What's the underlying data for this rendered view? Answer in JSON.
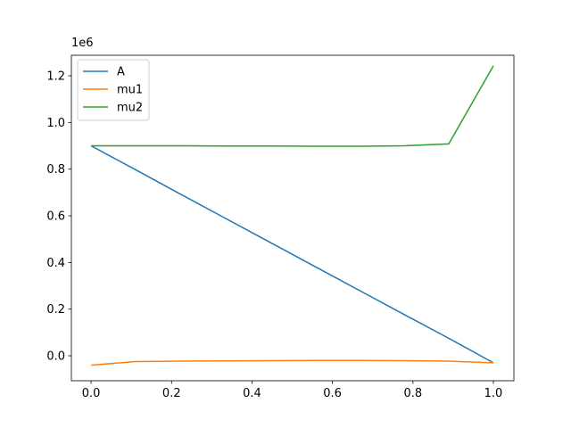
{
  "chart_data": {
    "type": "line",
    "y_offset_label": "1e6",
    "x": [
      0,
      0.111,
      0.222,
      0.333,
      0.444,
      0.556,
      0.667,
      0.778,
      0.889,
      1
    ],
    "series": [
      {
        "name": "A",
        "color": "#1f77b4",
        "values": [
          0.9,
          0.797,
          0.693,
          0.59,
          0.487,
          0.383,
          0.28,
          0.177,
          0.075,
          -0.03
        ]
      },
      {
        "name": "mu1",
        "color": "#ff7f0e",
        "values": [
          -0.04,
          -0.025,
          -0.023,
          -0.022,
          -0.021,
          -0.02,
          -0.02,
          -0.021,
          -0.023,
          -0.03
        ]
      },
      {
        "name": "mu2",
        "color": "#2ca02c",
        "values": [
          0.9,
          0.9,
          0.9,
          0.899,
          0.899,
          0.898,
          0.898,
          0.9,
          0.908,
          1.243
        ]
      }
    ],
    "xlim": [
      -0.049,
      1.051
    ],
    "ylim": [
      -0.107,
      1.288
    ],
    "xticks": [
      {
        "value": 0,
        "label": "0.0"
      },
      0.2,
      0.4,
      0.6,
      0.8,
      {
        "value": 1,
        "label": "1.0"
      }
    ],
    "yticks": [
      {
        "value": 0,
        "label": "0.0"
      },
      0.2,
      0.4,
      0.6,
      0.8,
      {
        "value": 1,
        "label": "1.0"
      },
      1.2
    ],
    "legend": "upper left",
    "grid": false
  }
}
